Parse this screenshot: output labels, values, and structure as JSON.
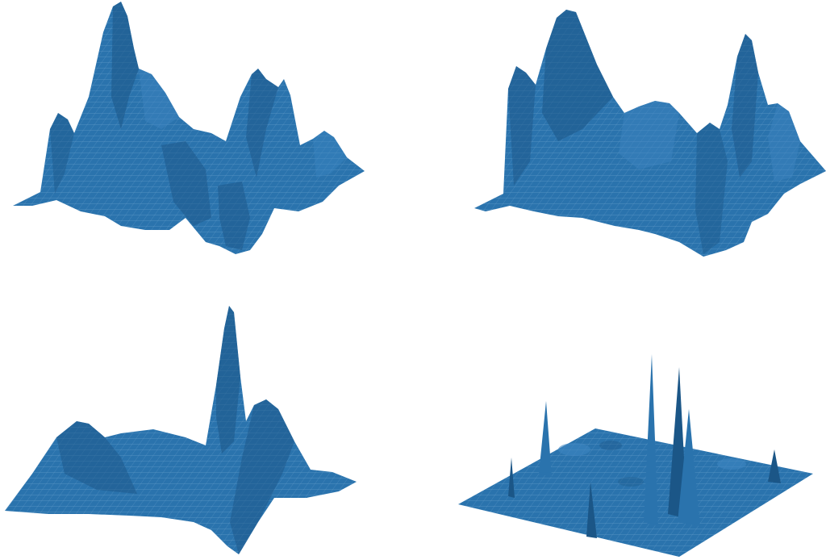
{
  "figure": {
    "panels": [
      {
        "id": "surface-top-left"
      },
      {
        "id": "surface-top-right"
      },
      {
        "id": "surface-bottom-left"
      },
      {
        "id": "surface-bottom-right"
      }
    ],
    "colors": {
      "surface": "#2a73ad",
      "surface_dark": "#1b5687",
      "surface_light": "#3d86c2",
      "wire": "#9cc3e3",
      "background": "#ffffff"
    }
  }
}
